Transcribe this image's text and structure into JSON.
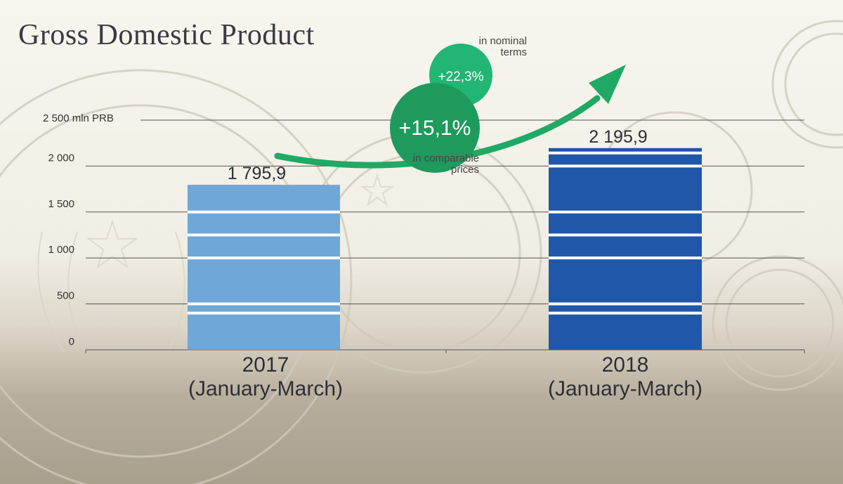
{
  "title": "Gross Domestic Product",
  "unit_label": "2 500 mln PRB",
  "growth": {
    "nominal": {
      "value": "+22,3%",
      "note": "in nominal terms",
      "color": "#22b573"
    },
    "comparable": {
      "value": "+15,1%",
      "note": "in comparable prices",
      "color": "#1e9a5c"
    }
  },
  "colors": {
    "bar_2017": "#6fa7d9",
    "bar_2018": "#2157a8",
    "arrow": "#20a965",
    "grid": "#555555",
    "text": "#2f2f36"
  },
  "chart_data": {
    "type": "bar",
    "title": "Gross Domestic Product",
    "ylabel": "2 500 mln PRB",
    "ylim": [
      0,
      2500
    ],
    "yticks": [
      0,
      500,
      1000,
      1500,
      2000
    ],
    "ytick_labels": [
      "0",
      "500",
      "1 000",
      "1 500",
      "2 000"
    ],
    "grid": true,
    "categories": [
      {
        "year": "2017",
        "period": "(January-March)"
      },
      {
        "year": "2018",
        "period": "(January-March)"
      }
    ],
    "values": [
      1795.9,
      2195.9
    ],
    "value_labels": [
      "1 795,9",
      "2 195,9"
    ]
  }
}
